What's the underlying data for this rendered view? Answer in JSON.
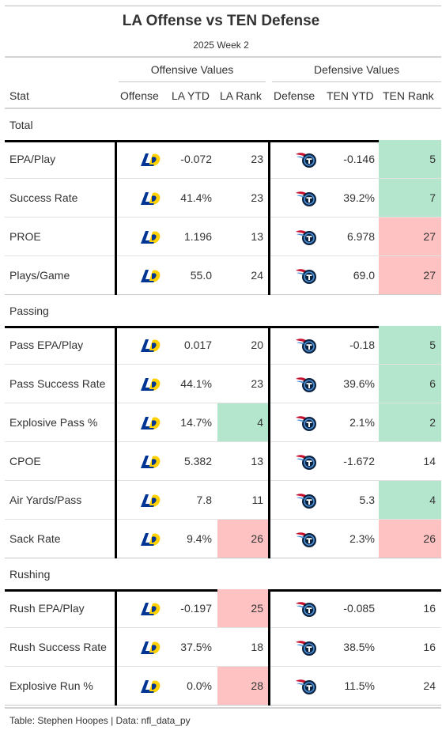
{
  "title": "LA Offense vs TEN Defense",
  "subtitle": "2025 Week 2",
  "spanners": {
    "offense": "Offensive Values",
    "defense": "Defensive Values"
  },
  "columns": {
    "stat": "Stat",
    "offense": "Offense",
    "off_ytd": "LA YTD",
    "off_rank": "LA Rank",
    "defense": "Defense",
    "def_ytd": "TEN YTD",
    "def_rank": "TEN Rank"
  },
  "source_note": "Table: Stephen Hoopes | Data: nfl_data_py",
  "colors": {
    "good": "#b3e6cc",
    "bad": "#ffc2c2",
    "rams_blue": "#003594",
    "rams_gold": "#ffd100",
    "titans_navy": "#0c2340",
    "titans_blue": "#4b92db",
    "titans_red": "#c8102e"
  },
  "icons": {
    "offense_logo": "rams-logo-icon",
    "defense_logo": "titans-logo-icon"
  },
  "chart_data": {
    "type": "table",
    "groups": [
      {
        "name": "Total",
        "rows": [
          {
            "stat": "EPA/Play",
            "off_ytd": "-0.072",
            "off_rank": 23,
            "def_ytd": "-0.146",
            "def_rank": 5,
            "off_hl": "",
            "def_hl": "good"
          },
          {
            "stat": "Success Rate",
            "off_ytd": "41.4%",
            "off_rank": 23,
            "def_ytd": "39.2%",
            "def_rank": 7,
            "off_hl": "",
            "def_hl": "good"
          },
          {
            "stat": "PROE",
            "off_ytd": "1.196",
            "off_rank": 13,
            "def_ytd": "6.978",
            "def_rank": 27,
            "off_hl": "",
            "def_hl": "bad"
          },
          {
            "stat": "Plays/Game",
            "off_ytd": "55.0",
            "off_rank": 24,
            "def_ytd": "69.0",
            "def_rank": 27,
            "off_hl": "",
            "def_hl": "bad"
          }
        ]
      },
      {
        "name": "Passing",
        "rows": [
          {
            "stat": "Pass EPA/Play",
            "off_ytd": "0.017",
            "off_rank": 20,
            "def_ytd": "-0.18",
            "def_rank": 5,
            "off_hl": "",
            "def_hl": "good"
          },
          {
            "stat": "Pass Success Rate",
            "off_ytd": "44.1%",
            "off_rank": 23,
            "def_ytd": "39.6%",
            "def_rank": 6,
            "off_hl": "",
            "def_hl": "good"
          },
          {
            "stat": "Explosive Pass %",
            "off_ytd": "14.7%",
            "off_rank": 4,
            "def_ytd": "2.1%",
            "def_rank": 2,
            "off_hl": "good",
            "def_hl": "good"
          },
          {
            "stat": "CPOE",
            "off_ytd": "5.382",
            "off_rank": 13,
            "def_ytd": "-1.672",
            "def_rank": 14,
            "off_hl": "",
            "def_hl": ""
          },
          {
            "stat": "Air Yards/Pass",
            "off_ytd": "7.8",
            "off_rank": 11,
            "def_ytd": "5.3",
            "def_rank": 4,
            "off_hl": "",
            "def_hl": "good"
          },
          {
            "stat": "Sack Rate",
            "off_ytd": "9.4%",
            "off_rank": 26,
            "def_ytd": "2.3%",
            "def_rank": 26,
            "off_hl": "bad",
            "def_hl": "bad"
          }
        ]
      },
      {
        "name": "Rushing",
        "rows": [
          {
            "stat": "Rush EPA/Play",
            "off_ytd": "-0.197",
            "off_rank": 25,
            "def_ytd": "-0.085",
            "def_rank": 16,
            "off_hl": "bad",
            "def_hl": ""
          },
          {
            "stat": "Rush Success Rate",
            "off_ytd": "37.5%",
            "off_rank": 18,
            "def_ytd": "38.5%",
            "def_rank": 16,
            "off_hl": "",
            "def_hl": ""
          },
          {
            "stat": "Explosive Run %",
            "off_ytd": "0.0%",
            "off_rank": 28,
            "def_ytd": "11.5%",
            "def_rank": 24,
            "off_hl": "bad",
            "def_hl": ""
          }
        ]
      }
    ]
  }
}
